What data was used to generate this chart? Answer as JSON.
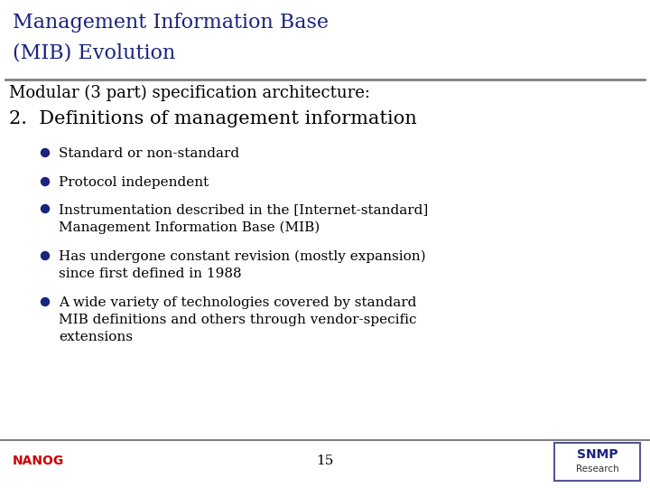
{
  "title_line1": "Management Information Base",
  "title_line2": "(MIB) Evolution",
  "title_color": "#1a237e",
  "title_fontsize": 16,
  "subtitle": "Modular (3 part) specification architecture:",
  "subtitle_fontsize": 13,
  "heading": "2.  Definitions of management information",
  "heading_fontsize": 15,
  "bullet_color": "#1a237e",
  "bullet_fontsize": 11,
  "body_color": "#000000",
  "bg_color": "#ffffff",
  "separator_color": "#808080",
  "page_number": "15",
  "nanog_color": "#cc0000",
  "snmp_color": "#1a237e",
  "bullets": [
    "Standard or non-standard",
    "Protocol independent",
    "Instrumentation described in the [Internet-standard]\nManagement Information Base (MIB)",
    "Has undergone constant revision (mostly expansion)\nsince first defined in 1988",
    "A wide variety of technologies covered by standard\nMIB definitions and others through vendor-specific\nextensions"
  ]
}
